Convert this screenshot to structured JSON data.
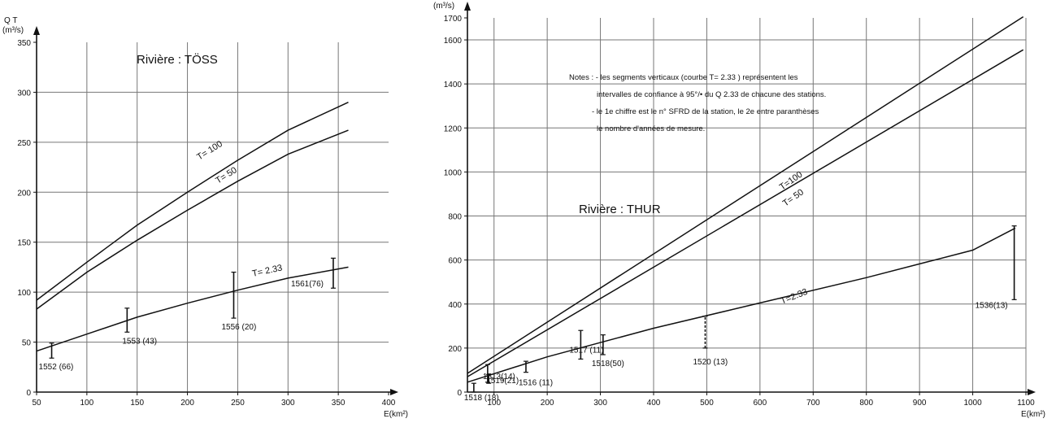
{
  "chart_data": [
    {
      "type": "line",
      "title": "Rivière : TÖSS",
      "ylabel_top": "Q T",
      "ylabel_unit": "(m³/s)",
      "xlabel": "E(km²)",
      "xlim": [
        50,
        400
      ],
      "ylim": [
        0,
        350
      ],
      "xticks": [
        50,
        100,
        150,
        200,
        250,
        300,
        350,
        400
      ],
      "yticks": [
        0,
        50,
        100,
        150,
        200,
        250,
        300,
        350
      ],
      "grid": true,
      "series": [
        {
          "name": "T= 100",
          "x": [
            50,
            100,
            150,
            200,
            250,
            300,
            360
          ],
          "y": [
            92,
            130,
            167,
            200,
            232,
            262,
            290
          ]
        },
        {
          "name": "T= 50",
          "x": [
            50,
            100,
            150,
            200,
            250,
            300,
            360
          ],
          "y": [
            83,
            120,
            152,
            182,
            211,
            238,
            262
          ]
        },
        {
          "name": "T= 2.33",
          "x": [
            50,
            100,
            150,
            200,
            250,
            300,
            360
          ],
          "y": [
            41,
            58,
            75,
            89,
            102,
            114,
            125
          ]
        }
      ],
      "error_bars": [
        {
          "x": 65,
          "low": 34,
          "high": 49,
          "label": "1552 (66)"
        },
        {
          "x": 140,
          "low": 60,
          "high": 84,
          "label": "1553 (43)"
        },
        {
          "x": 246,
          "low": 74,
          "high": 120,
          "label": "1556 (20)"
        },
        {
          "x": 345,
          "low": 104,
          "high": 134,
          "label": "1561(76)"
        }
      ]
    },
    {
      "type": "line",
      "title": "Rivière : THUR",
      "ylabel_top": "Q T",
      "ylabel_unit": "(m³/s)",
      "xlabel": "E(km²)",
      "xlim": [
        50,
        1100
      ],
      "ylim": [
        0,
        1700
      ],
      "xticks": [
        100,
        200,
        300,
        400,
        500,
        600,
        700,
        800,
        900,
        1000,
        1100
      ],
      "yticks": [
        0,
        200,
        400,
        600,
        800,
        1000,
        1200,
        1400,
        1600,
        1700
      ],
      "grid": true,
      "notes": [
        "Notes : - les segments verticaux (courbe T= 2.33 ) représentent les",
        "intervalles de confiance à 95°/• du Q 2.33 de chacune des stations.",
        "- le 1e chiffre est le n° SFRD de la station, le 2e entre paranthèses",
        "le nombre d'années de mesure."
      ],
      "series": [
        {
          "name": "T=100",
          "x": [
            50,
            1095
          ],
          "y": [
            85,
            1705
          ]
        },
        {
          "name": "T= 50",
          "x": [
            50,
            1095
          ],
          "y": [
            70,
            1555
          ]
        },
        {
          "name": "T=2.33",
          "x": [
            50,
            200,
            400,
            600,
            800,
            1000,
            1080
          ],
          "y": [
            45,
            160,
            290,
            405,
            520,
            645,
            745
          ]
        }
      ],
      "error_bars": [
        {
          "x": 62,
          "low": 0,
          "high": 40,
          "label": "1518 (18)",
          "dashed": false
        },
        {
          "x": 88,
          "low": 45,
          "high": 125,
          "label": "1513(14)",
          "dashed": false
        },
        {
          "x": 90,
          "low": 40,
          "high": 80,
          "label": "1519(21)",
          "dashed": false
        },
        {
          "x": 160,
          "low": 90,
          "high": 140,
          "label": "1516 (11)",
          "dashed": false
        },
        {
          "x": 263,
          "low": 150,
          "high": 280,
          "label": "1517 (11)",
          "dashed": false
        },
        {
          "x": 305,
          "low": 170,
          "high": 260,
          "label": "1518(50)",
          "dashed": false
        },
        {
          "x": 497,
          "low": 200,
          "high": 345,
          "label": "1520 (13)",
          "dashed": true
        },
        {
          "x": 1078,
          "low": 420,
          "high": 755,
          "label": "1536(13)",
          "dashed": false
        }
      ]
    }
  ]
}
